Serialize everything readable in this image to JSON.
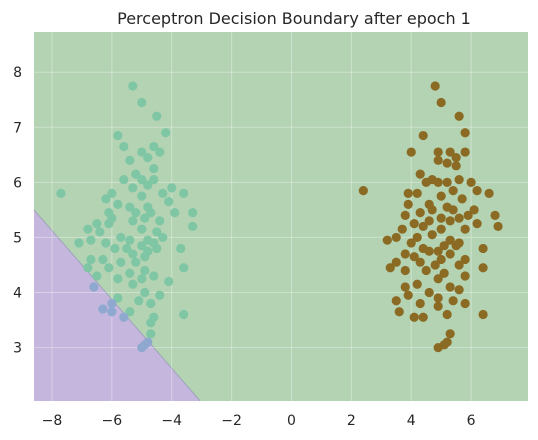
{
  "chart_data": {
    "type": "scatter",
    "title": "Perceptron Decision Boundary after epoch 1",
    "xlabel": "",
    "ylabel": "",
    "xlim": [
      -8.6,
      7.9
    ],
    "ylim": [
      2.03,
      8.73
    ],
    "xticks": [
      -8,
      -6,
      -4,
      -2,
      0,
      2,
      4,
      6
    ],
    "xtick_labels": [
      "−8",
      "−6",
      "−4",
      "−2",
      "0",
      "2",
      "4",
      "6"
    ],
    "yticks": [
      3,
      4,
      5,
      6,
      7,
      8
    ],
    "ytick_labels": [
      "3",
      "4",
      "5",
      "6",
      "7",
      "8"
    ],
    "grid": true,
    "legend": "none",
    "regions": [
      {
        "name": "class 0 region",
        "color": "#b3d3b3"
      },
      {
        "name": "class 1 region",
        "color": "#c4b6dc"
      }
    ],
    "decision_boundary": {
      "x": [
        -8.6,
        -3.05
      ],
      "y": [
        5.5,
        2.03
      ]
    },
    "series": [
      {
        "color": "#7fc6a4",
        "color_in_purple_region": "#8fa8d0",
        "points": [
          [
            -5.3,
            7.75
          ],
          [
            -5.0,
            7.45
          ],
          [
            -4.5,
            7.2
          ],
          [
            -4.2,
            6.9
          ],
          [
            -5.8,
            6.85
          ],
          [
            -5.6,
            6.65
          ],
          [
            -4.6,
            6.65
          ],
          [
            -5.0,
            6.55
          ],
          [
            -4.4,
            6.55
          ],
          [
            -4.8,
            6.45
          ],
          [
            -5.4,
            6.4
          ],
          [
            -4.6,
            6.25
          ],
          [
            -5.2,
            6.15
          ],
          [
            -5.6,
            6.05
          ],
          [
            -5.0,
            6.05
          ],
          [
            -4.6,
            6.05
          ],
          [
            -4.0,
            5.9
          ],
          [
            -5.3,
            5.9
          ],
          [
            -4.8,
            5.95
          ],
          [
            -3.6,
            5.8
          ],
          [
            -4.3,
            5.8
          ],
          [
            -5.0,
            5.75
          ],
          [
            -6.0,
            5.8
          ],
          [
            -7.7,
            5.8
          ],
          [
            -6.2,
            5.7
          ],
          [
            -5.8,
            5.6
          ],
          [
            -5.4,
            5.55
          ],
          [
            -4.8,
            5.55
          ],
          [
            -4.1,
            5.65
          ],
          [
            -4.7,
            5.45
          ],
          [
            -6.0,
            5.35
          ],
          [
            -5.2,
            5.45
          ],
          [
            -3.9,
            5.45
          ],
          [
            -3.3,
            5.45
          ],
          [
            -6.5,
            5.25
          ],
          [
            -6.1,
            5.25
          ],
          [
            -5.3,
            5.3
          ],
          [
            -4.9,
            5.35
          ],
          [
            -4.4,
            5.3
          ],
          [
            -6.1,
            5.45
          ],
          [
            -3.3,
            5.2
          ],
          [
            -6.8,
            5.15
          ],
          [
            -6.4,
            5.1
          ],
          [
            -5.0,
            5.15
          ],
          [
            -4.5,
            5.1
          ],
          [
            -5.7,
            5.0
          ],
          [
            -6.7,
            4.95
          ],
          [
            -4.8,
            4.95
          ],
          [
            -4.3,
            5.0
          ],
          [
            -5.4,
            4.95
          ],
          [
            -7.1,
            4.9
          ],
          [
            -6.2,
            4.9
          ],
          [
            -5.0,
            4.85
          ],
          [
            -4.6,
            4.9
          ],
          [
            -5.9,
            4.8
          ],
          [
            -5.5,
            4.8
          ],
          [
            -3.7,
            4.8
          ],
          [
            -6.7,
            4.6
          ],
          [
            -4.8,
            4.75
          ],
          [
            -4.5,
            4.8
          ],
          [
            -5.3,
            4.7
          ],
          [
            -4.9,
            4.65
          ],
          [
            -6.3,
            4.6
          ],
          [
            -5.7,
            4.55
          ],
          [
            -5.2,
            4.55
          ],
          [
            -3.6,
            4.45
          ],
          [
            -6.8,
            4.45
          ],
          [
            -6.1,
            4.45
          ],
          [
            -4.9,
            4.4
          ],
          [
            -5.4,
            4.35
          ],
          [
            -4.6,
            4.3
          ],
          [
            -6.5,
            4.3
          ],
          [
            -5.8,
            4.25
          ],
          [
            -5.0,
            4.25
          ],
          [
            -4.1,
            4.2
          ],
          [
            -5.3,
            4.15
          ],
          [
            -6.6,
            4.1
          ],
          [
            -4.9,
            4.0
          ],
          [
            -4.4,
            3.95
          ],
          [
            -5.8,
            3.9
          ],
          [
            -5.1,
            3.85
          ],
          [
            -4.7,
            3.8
          ],
          [
            -6.0,
            3.8
          ],
          [
            -5.4,
            3.65
          ],
          [
            -4.6,
            3.55
          ],
          [
            -3.6,
            3.6
          ],
          [
            -6.3,
            3.7
          ],
          [
            -6.0,
            3.65
          ],
          [
            -5.6,
            3.55
          ],
          [
            -4.7,
            3.25
          ],
          [
            -4.8,
            3.1
          ],
          [
            -4.9,
            3.05
          ],
          [
            -5.0,
            3.0
          ],
          [
            -4.7,
            3.45
          ]
        ]
      },
      {
        "color": "#8b6a23",
        "points": [
          [
            4.8,
            7.75
          ],
          [
            5.0,
            7.45
          ],
          [
            5.6,
            7.2
          ],
          [
            5.8,
            6.9
          ],
          [
            4.4,
            6.85
          ],
          [
            5.8,
            6.55
          ],
          [
            4.0,
            6.55
          ],
          [
            4.9,
            6.55
          ],
          [
            5.3,
            6.55
          ],
          [
            5.5,
            6.45
          ],
          [
            4.9,
            6.4
          ],
          [
            5.2,
            6.35
          ],
          [
            5.5,
            6.3
          ],
          [
            4.3,
            6.15
          ],
          [
            4.7,
            6.05
          ],
          [
            4.9,
            6.0
          ],
          [
            5.2,
            6.0
          ],
          [
            5.6,
            6.05
          ],
          [
            6.0,
            6.0
          ],
          [
            4.5,
            6.0
          ],
          [
            3.9,
            5.8
          ],
          [
            5.4,
            5.85
          ],
          [
            6.2,
            5.85
          ],
          [
            6.6,
            5.8
          ],
          [
            2.4,
            5.85
          ],
          [
            4.2,
            5.8
          ],
          [
            5.0,
            5.75
          ],
          [
            5.7,
            5.7
          ],
          [
            4.6,
            5.6
          ],
          [
            3.9,
            5.6
          ],
          [
            5.2,
            5.55
          ],
          [
            5.4,
            5.5
          ],
          [
            4.7,
            5.5
          ],
          [
            6.1,
            5.5
          ],
          [
            4.3,
            5.45
          ],
          [
            3.8,
            5.4
          ],
          [
            5.0,
            5.35
          ],
          [
            5.9,
            5.4
          ],
          [
            6.8,
            5.4
          ],
          [
            4.6,
            5.3
          ],
          [
            5.3,
            5.3
          ],
          [
            5.6,
            5.35
          ],
          [
            4.1,
            5.25
          ],
          [
            6.2,
            5.25
          ],
          [
            3.7,
            5.15
          ],
          [
            4.4,
            5.2
          ],
          [
            5.0,
            5.15
          ],
          [
            5.8,
            5.15
          ],
          [
            6.9,
            5.2
          ],
          [
            3.5,
            5.0
          ],
          [
            4.2,
            5.0
          ],
          [
            4.7,
            5.05
          ],
          [
            5.3,
            4.95
          ],
          [
            5.6,
            4.9
          ],
          [
            3.2,
            4.95
          ],
          [
            4.0,
            4.9
          ],
          [
            5.1,
            4.85
          ],
          [
            5.5,
            4.85
          ],
          [
            4.4,
            4.8
          ],
          [
            6.4,
            4.8
          ],
          [
            4.6,
            4.75
          ],
          [
            4.9,
            4.75
          ],
          [
            3.8,
            4.7
          ],
          [
            5.3,
            4.7
          ],
          [
            4.1,
            4.65
          ],
          [
            5.0,
            4.6
          ],
          [
            5.8,
            4.6
          ],
          [
            3.5,
            4.55
          ],
          [
            4.3,
            4.55
          ],
          [
            4.8,
            4.5
          ],
          [
            3.8,
            4.4
          ],
          [
            5.6,
            4.5
          ],
          [
            4.5,
            4.4
          ],
          [
            5.1,
            4.35
          ],
          [
            3.3,
            4.45
          ],
          [
            6.4,
            4.45
          ],
          [
            4.9,
            4.25
          ],
          [
            4.2,
            4.15
          ],
          [
            5.8,
            4.3
          ],
          [
            3.8,
            4.1
          ],
          [
            5.3,
            4.1
          ],
          [
            4.6,
            4.0
          ],
          [
            5.6,
            4.05
          ],
          [
            4.9,
            3.9
          ],
          [
            3.9,
            3.95
          ],
          [
            4.3,
            3.8
          ],
          [
            5.4,
            3.85
          ],
          [
            3.5,
            3.85
          ],
          [
            4.9,
            3.75
          ],
          [
            5.8,
            3.8
          ],
          [
            3.6,
            3.65
          ],
          [
            6.4,
            3.6
          ],
          [
            4.1,
            3.55
          ],
          [
            4.4,
            3.55
          ],
          [
            5.2,
            3.6
          ],
          [
            5.3,
            3.25
          ],
          [
            5.2,
            3.1
          ],
          [
            4.9,
            3.0
          ],
          [
            5.1,
            3.05
          ]
        ]
      }
    ]
  }
}
